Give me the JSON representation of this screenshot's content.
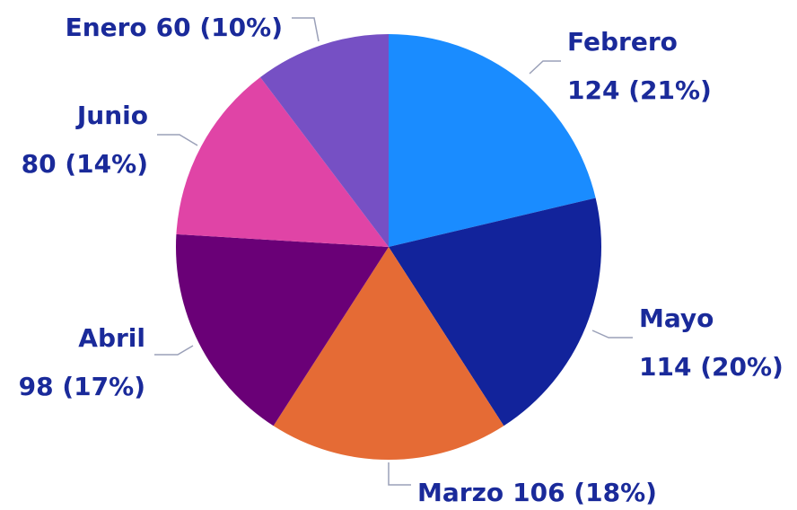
{
  "chart_data": {
    "type": "pie",
    "categories": [
      "Febrero",
      "Mayo",
      "Marzo",
      "Abril",
      "Junio",
      "Enero"
    ],
    "values": [
      124,
      114,
      106,
      98,
      80,
      60
    ],
    "value_labels": [
      "124 (21%)",
      "114 (20%)",
      "106 (18%)",
      "98 (17%)",
      "80 (14%)",
      "60 (10%)"
    ],
    "colors": [
      "#1a8cff",
      "#12239b",
      "#e56b35",
      "#6a0077",
      "#e044a6",
      "#7650c4"
    ]
  }
}
